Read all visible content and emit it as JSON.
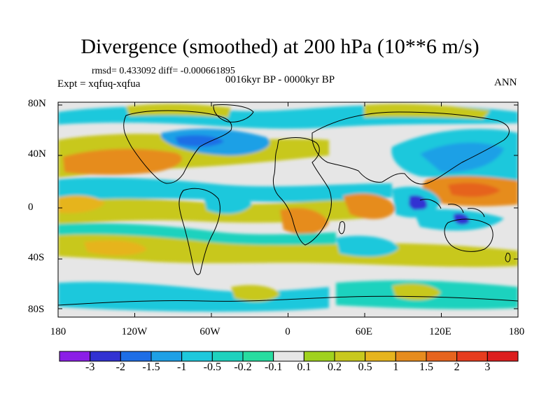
{
  "title": "Divergence (smoothed) at 200 hPa (10**6 m/s)",
  "stats": "rmsd= 0.433092 diff= -0.000661895",
  "period": "0016kyr BP - 0000kyr BP",
  "experiment": "Expt = xqfuq-xqfua",
  "season": "ANN",
  "map": {
    "lat_ticks": [
      "80N",
      "40N",
      "0",
      "40S",
      "80S"
    ],
    "lon_ticks": [
      "180",
      "120W",
      "60W",
      "0",
      "60E",
      "120E",
      "180"
    ]
  },
  "colorbar": {
    "labels": [
      "-3",
      "-2",
      "-1.5",
      "-1",
      "-0.5",
      "-0.2",
      "-0.1",
      "0.1",
      "0.2",
      "0.5",
      "1",
      "1.5",
      "2",
      "3"
    ],
    "colors": [
      "#8b1ee6",
      "#3232d2",
      "#1e6ee6",
      "#1ea0e6",
      "#1ec8dc",
      "#1ed2be",
      "#28dca0",
      "#e6e6e6",
      "#a0d21e",
      "#c8c81e",
      "#e6b41e",
      "#e68c1e",
      "#e6641e",
      "#e63c1e",
      "#dc1e1e"
    ]
  }
}
